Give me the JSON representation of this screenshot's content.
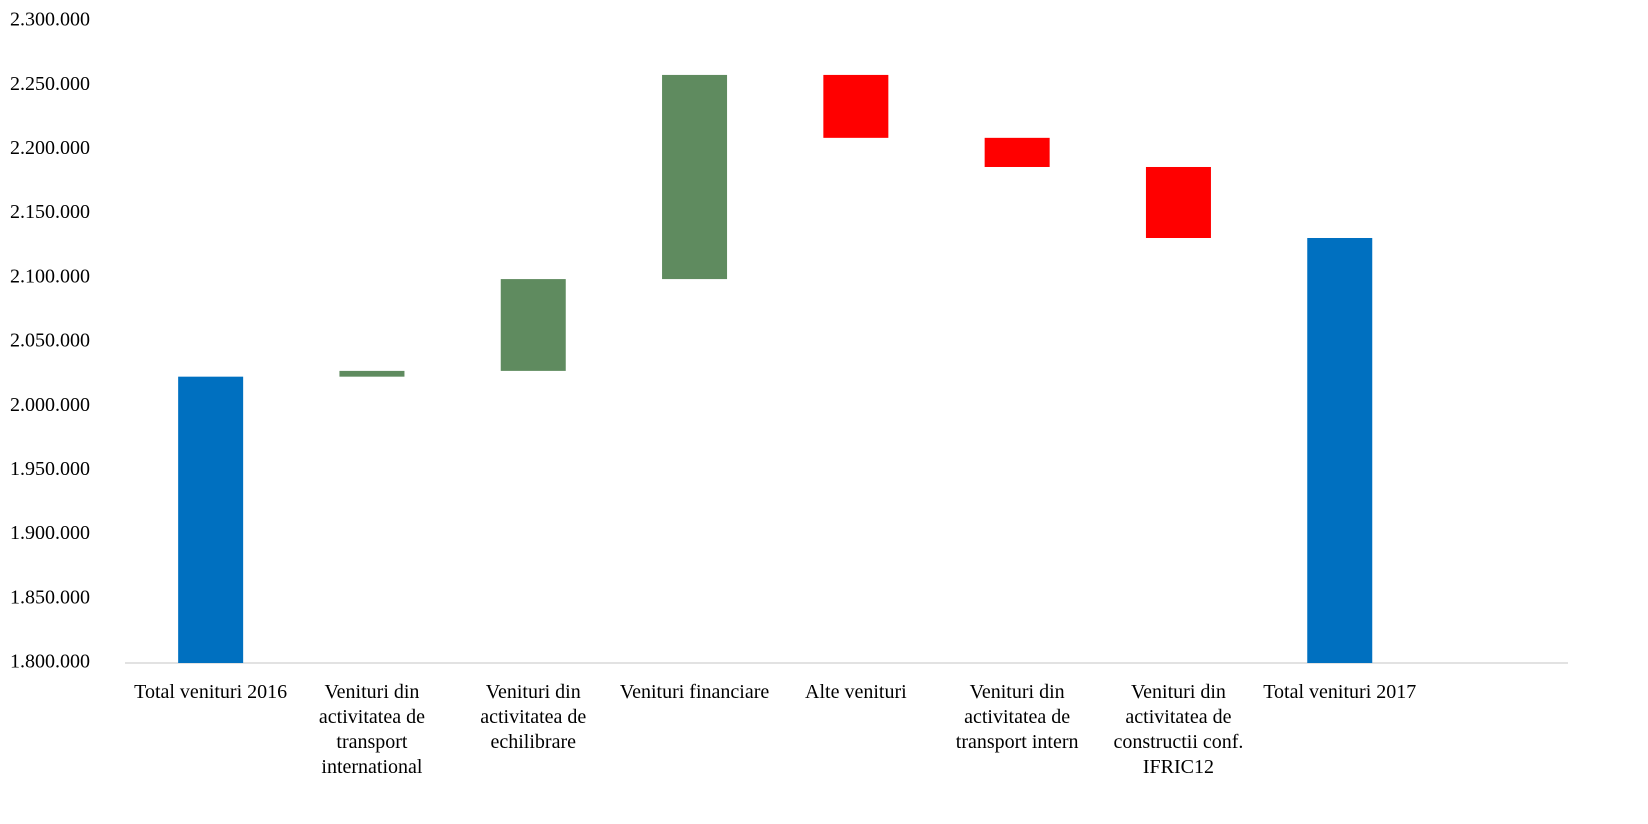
{
  "chart_data": {
    "type": "waterfall",
    "categories": [
      "Total venituri 2016",
      "Venituri din activitatea de transport international",
      "Venituri din activitatea de echilibrare",
      "Venituri financiare",
      "Alte venituri",
      "Venituri din activitatea de transport intern",
      "Venituri din activitatea de constructii conf. IFRIC12",
      "Total venituri 2017"
    ],
    "values": [
      2023000,
      4500,
      71500,
      159000,
      -49000,
      -22700,
      -55300,
      2131000
    ],
    "measure": [
      "total",
      "relative",
      "relative",
      "relative",
      "relative",
      "relative",
      "relative",
      "total"
    ],
    "colors": [
      "#0070c0",
      "#5f8b5f",
      "#5f8b5f",
      "#5f8b5f",
      "#ff0000",
      "#ff0000",
      "#ff0000",
      "#0070c0"
    ],
    "ylim": [
      1800000,
      2300000
    ],
    "yticks": [
      {
        "value": 1800000,
        "label": "1.800.000"
      },
      {
        "value": 1850000,
        "label": "1.850.000"
      },
      {
        "value": 1900000,
        "label": "1.900.000"
      },
      {
        "value": 1950000,
        "label": "1.950.000"
      },
      {
        "value": 2000000,
        "label": "2.000.000"
      },
      {
        "value": 2050000,
        "label": "2.050.000"
      },
      {
        "value": 2100000,
        "label": "2.100.000"
      },
      {
        "value": 2150000,
        "label": "2.150.000"
      },
      {
        "value": 2200000,
        "label": "2.200.000"
      },
      {
        "value": 2250000,
        "label": "2.250.000"
      },
      {
        "value": 2300000,
        "label": "2.300.000"
      }
    ],
    "grid": false
  }
}
